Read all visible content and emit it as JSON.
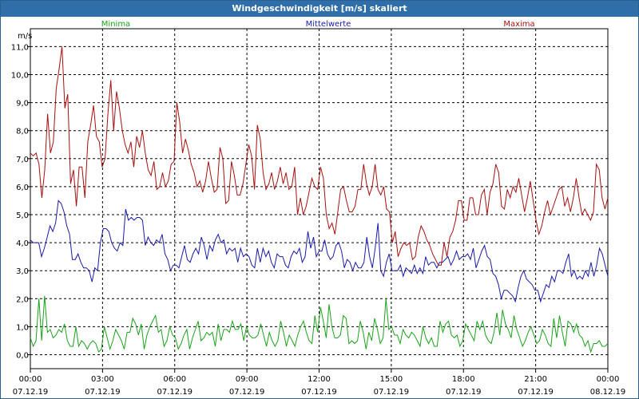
{
  "window": {
    "title": "Windgeschwindigkeit [m/s] skaliert"
  },
  "chart_data": {
    "type": "line",
    "ylabel": "m/s",
    "ylim": [
      0,
      11.0
    ],
    "yticks": [
      "0,0",
      "1,0",
      "2,0",
      "3,0",
      "4,0",
      "5,0",
      "6,0",
      "7,0",
      "8,0",
      "9,0",
      "10,0",
      "11,0"
    ],
    "xlim": [
      "00:00 07.12.19",
      "00:00 08.12.19"
    ],
    "xticks": [
      {
        "time": "00:00",
        "date": "07.12.19"
      },
      {
        "time": "03:00",
        "date": "07.12.19"
      },
      {
        "time": "06:00",
        "date": "07.12.19"
      },
      {
        "time": "09:00",
        "date": "07.12.19"
      },
      {
        "time": "12:00",
        "date": "07.12.19"
      },
      {
        "time": "15:00",
        "date": "07.12.19"
      },
      {
        "time": "18:00",
        "date": "07.12.19"
      },
      {
        "time": "21:00",
        "date": "07.12.19"
      },
      {
        "time": "00:00",
        "date": "08.12.19"
      }
    ],
    "grid": true,
    "legend_position": "top",
    "series": [
      {
        "name": "Minima",
        "color": "#1aa31a",
        "values": [
          0.6,
          0.3,
          0.5,
          2.0,
          0.5,
          2.1,
          0.8,
          0.9,
          0.6,
          0.7,
          0.9,
          0.8,
          1.1,
          0.5,
          0.3,
          0.3,
          1.0,
          0.3,
          0.5,
          0.4,
          0.2,
          0.4,
          0.5,
          0.4,
          0.1,
          0.2,
          1.0,
          0.6,
          0.2,
          0.5,
          0.9,
          0.7,
          0.5,
          0.2,
          0.8,
          0.8,
          1.3,
          1.1,
          0.7,
          1.1,
          0.2,
          0.7,
          1.0,
          1.2,
          1.4,
          0.8,
          0.9,
          0.3,
          0.5,
          1.0,
          0.7,
          0.6,
          0.2,
          0.4,
          0.7,
          0.9,
          0.2,
          0.6,
          0.9,
          1.2,
          0.5,
          0.6,
          0.8,
          0.7,
          0.8,
          0.3,
          1.1,
          0.5,
          0.9,
          0.9,
          0.8,
          1.2,
          0.9,
          0.9,
          1.1,
          0.5,
          1.0,
          0.7,
          0.6,
          0.6,
          0.7,
          1.1,
          0.7,
          0.3,
          0.8,
          0.5,
          0.3,
          0.5,
          1.2,
          0.8,
          0.3,
          0.7,
          0.5,
          0.3,
          0.7,
          1.0,
          1.2,
          0.8,
          0.5,
          0.4,
          1.4,
          0.8,
          1.7,
          1.2,
          0.6,
          1.8,
          1.0,
          0.6,
          0.6,
          0.7,
          1.4,
          1.3,
          0.4,
          0.5,
          0.4,
          0.5,
          1.2,
          0.8,
          0.2,
          0.8,
          0.5,
          1.3,
          0.9,
          0.4,
          0.6,
          2.0,
          0.9,
          1.0,
          0.7,
          0.7,
          0.4,
          0.9,
          0.7,
          0.6,
          0.8,
          0.7,
          0.5,
          0.3,
          1.0,
          0.6,
          0.4,
          0.6,
          0.3,
          0.3,
          1.2,
          0.8,
          1.1,
          1.2,
          0.7,
          0.6,
          0.7,
          0.3,
          0.5,
          1.1,
          0.9,
          0.7,
          0.5,
          1.2,
          0.9,
          1.2,
          0.7,
          0.5,
          0.4,
          0.8,
          1.5,
          0.7,
          1.6,
          1.1,
          0.9,
          0.6,
          1.4,
          0.9,
          0.6,
          0.3,
          0.5,
          0.8,
          1.0,
          0.7,
          0.4,
          0.5,
          0.9,
          0.7,
          0.4,
          0.3,
          1.3,
          0.6,
          1.4,
          0.8,
          0.3,
          1.2,
          1.1,
          0.8,
          1.1,
          0.7,
          0.6,
          0.3,
          0.5,
          0.1,
          0.4,
          0.4,
          0.5,
          0.3,
          0.3,
          0.4
        ]
      },
      {
        "name": "Mittelwerte",
        "color": "#1a1aa8",
        "values": [
          4.1,
          4.0,
          4.0,
          4.0,
          3.5,
          3.8,
          4.2,
          4.6,
          4.4,
          4.7,
          5.5,
          5.4,
          5.1,
          4.6,
          4.3,
          3.4,
          3.4,
          3.6,
          3.3,
          3.1,
          3.1,
          3.0,
          2.6,
          3.1,
          3.0,
          4.0,
          4.5,
          4.5,
          4.4,
          4.0,
          3.8,
          3.7,
          4.0,
          3.9,
          5.2,
          4.8,
          4.9,
          4.8,
          4.9,
          4.9,
          4.8,
          3.9,
          4.2,
          4.0,
          3.9,
          4.1,
          4.0,
          4.3,
          3.6,
          3.4,
          3.0,
          3.2,
          3.2,
          3.1,
          3.5,
          3.9,
          3.4,
          3.3,
          3.6,
          3.8,
          3.6,
          4.2,
          3.9,
          3.4,
          3.9,
          3.7,
          4.1,
          4.3,
          4.0,
          4.1,
          3.6,
          3.8,
          3.7,
          3.8,
          3.3,
          3.8,
          3.5,
          3.6,
          3.5,
          3.2,
          3.1,
          3.8,
          3.3,
          3.8,
          3.5,
          3.7,
          3.3,
          3.1,
          3.6,
          3.5,
          3.5,
          3.2,
          3.1,
          3.5,
          3.7,
          3.6,
          3.8,
          3.3,
          3.5,
          4.4,
          3.8,
          4.2,
          3.5,
          3.7,
          3.7,
          4.1,
          3.6,
          3.4,
          3.5,
          3.9,
          4.0,
          3.7,
          3.1,
          3.4,
          3.3,
          3.0,
          3.3,
          3.1,
          3.1,
          3.3,
          4.2,
          3.5,
          3.1,
          3.8,
          4.7,
          3.0,
          2.8,
          3.3,
          3.6,
          3.0,
          3.0,
          3.0,
          3.2,
          2.8,
          3.1,
          3.0,
          2.9,
          3.2,
          2.9,
          3.1,
          2.9,
          3.5,
          3.2,
          3.3,
          3.3,
          3.1,
          3.3,
          3.3,
          3.4,
          3.5,
          3.2,
          3.4,
          3.7,
          3.4,
          3.5,
          3.5,
          3.6,
          3.4,
          3.8,
          3.1,
          3.4,
          3.7,
          3.9,
          3.5,
          3.4,
          2.9,
          2.8,
          2.5,
          2.0,
          2.3,
          2.3,
          2.2,
          2.1,
          1.9,
          2.4,
          2.8,
          3.0,
          2.7,
          2.6,
          2.5,
          2.3,
          2.3,
          1.9,
          2.2,
          2.5,
          2.4,
          2.8,
          2.6,
          3.0,
          3.0,
          2.9,
          3.3,
          3.6,
          2.8,
          3.0,
          2.7,
          2.8,
          2.7,
          3.0,
          2.8,
          3.3,
          2.8,
          3.2,
          3.8,
          3.6,
          3.2,
          2.8
        ]
      },
      {
        "name": "Maxima",
        "color": "#a80f0f",
        "values": [
          7.2,
          7.1,
          7.2,
          6.8,
          5.6,
          6.6,
          8.6,
          7.2,
          7.6,
          9.5,
          10.2,
          11.0,
          8.8,
          9.3,
          6.1,
          6.6,
          5.3,
          6.7,
          6.7,
          5.6,
          7.6,
          8.2,
          8.9,
          7.8,
          7.6,
          6.7,
          7.0,
          8.6,
          9.8,
          8.0,
          9.4,
          8.8,
          8.0,
          7.5,
          7.2,
          7.6,
          6.7,
          7.8,
          7.4,
          8.0,
          7.2,
          6.6,
          6.4,
          6.9,
          5.9,
          6.0,
          6.5,
          6.0,
          6.2,
          6.8,
          6.9,
          9.0,
          8.3,
          7.2,
          7.7,
          7.3,
          6.8,
          6.5,
          6.0,
          6.2,
          5.8,
          6.2,
          6.9,
          6.3,
          5.8,
          5.9,
          7.4,
          7.0,
          5.4,
          5.5,
          6.9,
          6.4,
          5.7,
          5.7,
          6.1,
          6.8,
          7.5,
          7.1,
          5.9,
          8.2,
          7.7,
          6.5,
          5.9,
          6.1,
          6.5,
          5.9,
          6.2,
          6.7,
          6.1,
          6.5,
          5.9,
          6.0,
          6.7,
          5.0,
          5.6,
          5.0,
          5.3,
          5.8,
          6.3,
          6.0,
          5.9,
          6.7,
          6.3,
          5.0,
          4.5,
          4.7,
          4.3,
          5.1,
          5.9,
          6.0,
          5.5,
          5.1,
          5.1,
          5.3,
          5.9,
          5.9,
          6.8,
          6.1,
          5.7,
          6.0,
          6.8,
          5.9,
          5.7,
          6.0,
          5.2,
          5.1,
          4.0,
          4.4,
          3.5,
          3.8,
          4.0,
          3.9,
          4.0,
          3.4,
          3.5,
          4.2,
          4.6,
          4.4,
          4.1,
          3.9,
          3.6,
          3.4,
          3.2,
          3.2,
          4.0,
          3.5,
          4.2,
          4.4,
          4.8,
          5.5,
          5.5,
          4.8,
          4.8,
          5.6,
          5.6,
          5.0,
          5.0,
          5.7,
          5.9,
          5.0,
          5.8,
          6.1,
          6.8,
          6.5,
          5.3,
          5.2,
          5.9,
          5.6,
          6.0,
          5.8,
          6.3,
          5.7,
          5.1,
          5.6,
          6.2,
          5.5,
          4.8,
          4.3,
          4.6,
          5.1,
          5.5,
          5.0,
          5.3,
          5.6,
          5.9,
          6.0,
          5.3,
          5.6,
          5.1,
          5.6,
          6.3,
          5.6,
          5.0,
          5.2,
          5.0,
          4.8,
          5.1,
          6.8,
          6.6,
          5.6,
          5.2,
          5.6
        ]
      }
    ]
  }
}
